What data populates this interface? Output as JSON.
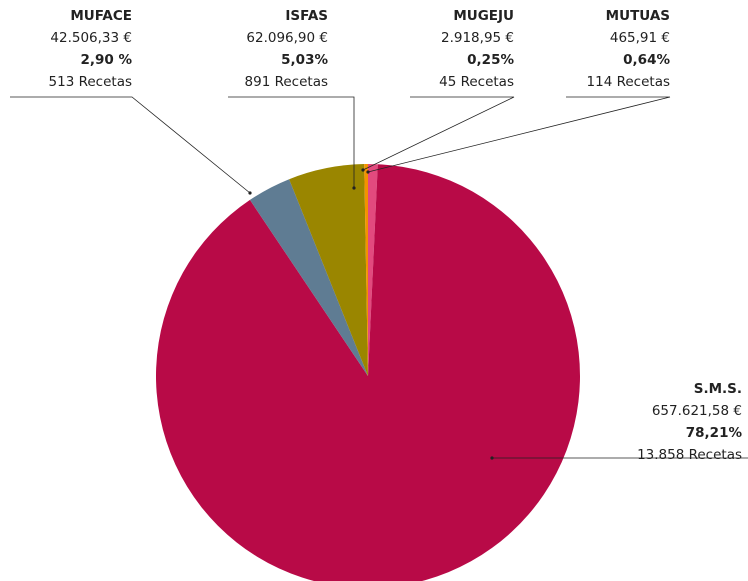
{
  "chart_data": {
    "type": "pie",
    "categories": [
      "MUTUAS",
      "S.M.S.",
      "MUFACE",
      "ISFAS",
      "MUGEJU"
    ],
    "values": [
      0.64,
      78.21,
      2.9,
      5.03,
      0.25
    ],
    "value_labels": [
      "0,64%",
      "78,21%",
      "2,90 %",
      "5,03%",
      "0,25%"
    ],
    "amounts": [
      "465,91 €",
      "657.621,58 €",
      "42.506,33 €",
      "62.096,90 €",
      "2.918,95 €"
    ],
    "recipes": [
      "114 Recetas",
      "13.858 Recetas",
      "513 Recetas",
      "891 Recetas",
      "45 Recetas"
    ],
    "colors": [
      "#e24a7e",
      "#b80a47",
      "#5f7c93",
      "#9a8600",
      "#f39200"
    ]
  }
}
